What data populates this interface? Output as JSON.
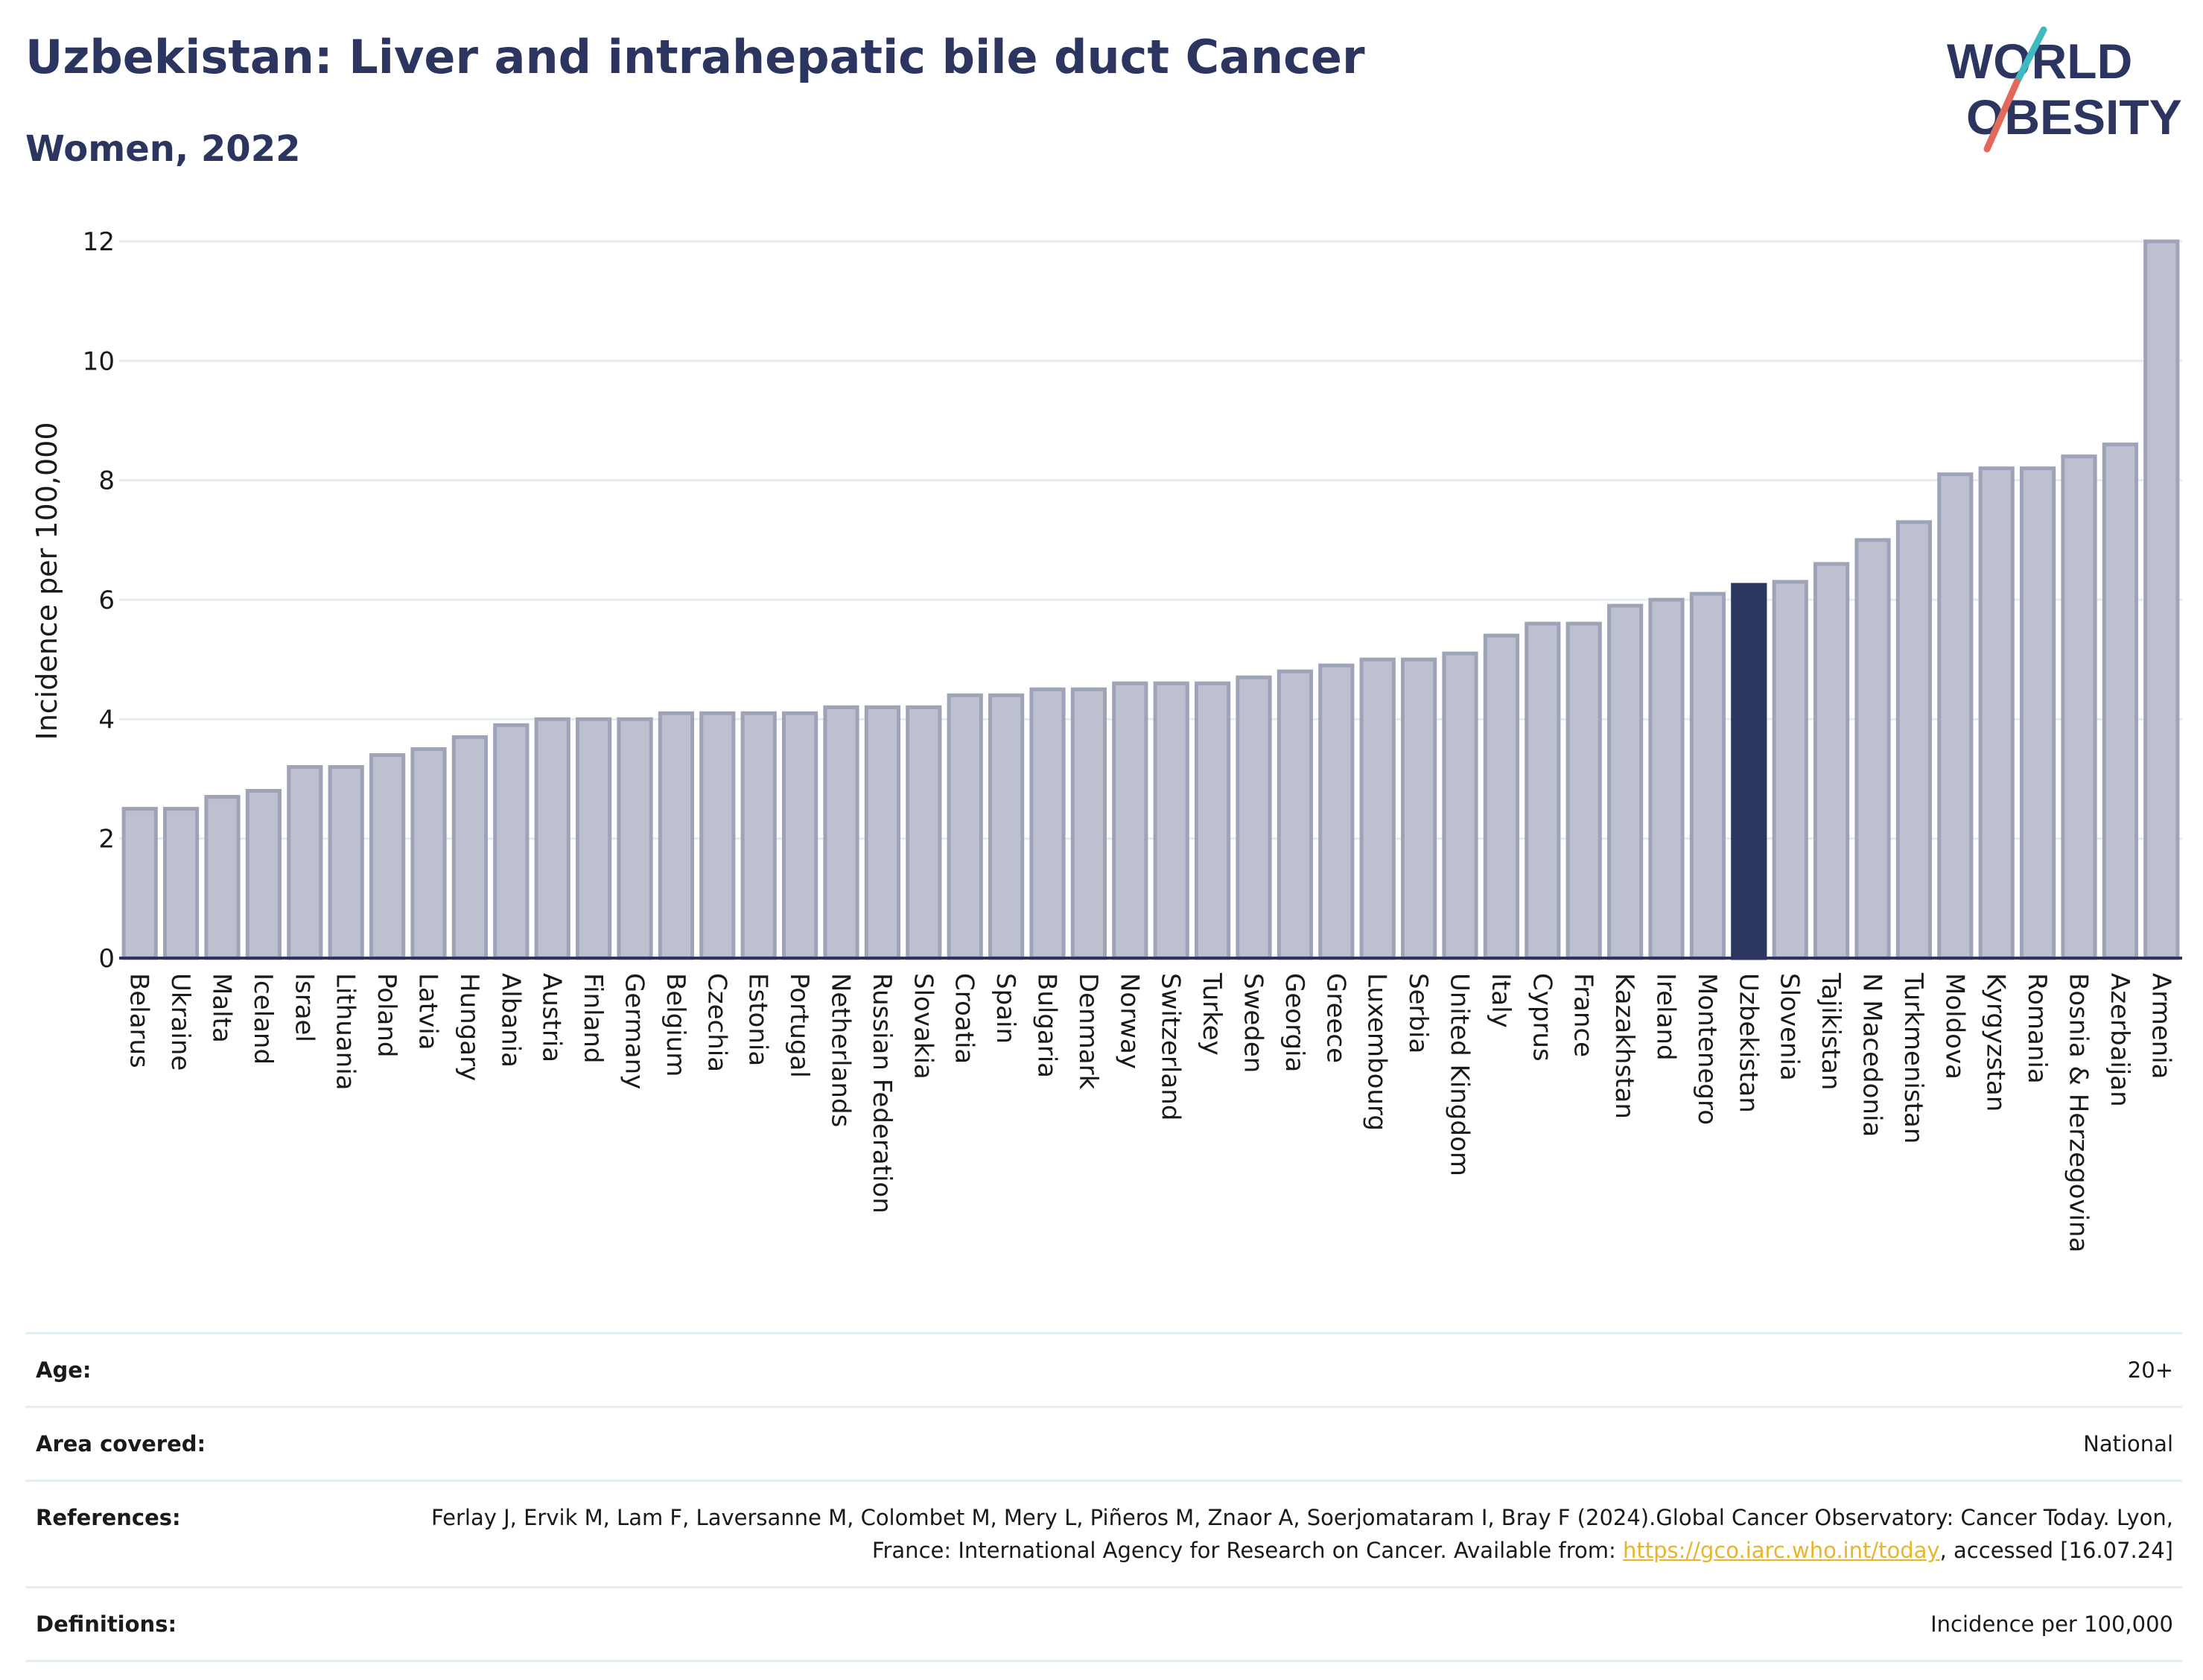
{
  "header": {
    "title": "Uzbekistan: Liver and intrahepatic bile duct Cancer",
    "subtitle": "Women, 2022"
  },
  "logo": {
    "line1": "WORLD",
    "line2": "OBESITY"
  },
  "colors": {
    "bar": "#bcc0cf",
    "bar_stroke": "#9ea3b8",
    "highlight": "#2b3560",
    "grid": "#e6ebf1",
    "title": "#2b3560",
    "link": "#e9b52c"
  },
  "chart_data": {
    "type": "bar",
    "ylabel": "Incidence per 100,000",
    "xlabel": "",
    "ylim": [
      0,
      12
    ],
    "yticks": [
      0,
      2,
      4,
      6,
      8,
      10,
      12
    ],
    "grid": true,
    "highlight": "Uzbekistan",
    "categories": [
      "Belarus",
      "Ukraine",
      "Malta",
      "Iceland",
      "Israel",
      "Lithuania",
      "Poland",
      "Latvia",
      "Hungary",
      "Albania",
      "Austria",
      "Finland",
      "Germany",
      "Belgium",
      "Czechia",
      "Estonia",
      "Portugal",
      "Netherlands",
      "Russian Federation",
      "Slovakia",
      "Croatia",
      "Spain",
      "Bulgaria",
      "Denmark",
      "Norway",
      "Switzerland",
      "Turkey",
      "Sweden",
      "Georgia",
      "Greece",
      "Luxembourg",
      "Serbia",
      "United Kingdom",
      "Italy",
      "Cyprus",
      "France",
      "Kazakhstan",
      "Ireland",
      "Montenegro",
      "Uzbekistan",
      "Slovenia",
      "Tajikistan",
      "N Macedonia",
      "Turkmenistan",
      "Moldova",
      "Kyrgyzstan",
      "Romania",
      "Bosnia & Herzegovina",
      "Azerbaijan",
      "Armenia"
    ],
    "values": [
      2.5,
      2.5,
      2.7,
      2.8,
      3.2,
      3.2,
      3.4,
      3.5,
      3.7,
      3.9,
      4.0,
      4.0,
      4.0,
      4.1,
      4.1,
      4.1,
      4.1,
      4.2,
      4.2,
      4.2,
      4.4,
      4.4,
      4.5,
      4.5,
      4.6,
      4.6,
      4.6,
      4.7,
      4.8,
      4.9,
      5.0,
      5.0,
      5.1,
      5.4,
      5.6,
      5.6,
      5.9,
      6.0,
      6.1,
      6.25,
      6.3,
      6.6,
      7.0,
      7.3,
      8.1,
      8.2,
      8.2,
      8.4,
      8.6,
      12.0
    ]
  },
  "info": {
    "age_label": "Age:",
    "age_value": "20+",
    "area_label": "Area covered:",
    "area_value": "National",
    "ref_label": "References:",
    "ref_text": "Ferlay J, Ervik M, Lam F, Laversanne M, Colombet M, Mery L, Piñeros M, Znaor A, Soerjomataram I, Bray F (2024).Global Cancer Observatory: Cancer Today. Lyon, France: International Agency for Research on Cancer. Available from: ",
    "ref_link": "https://gco.iarc.who.int/today",
    "ref_tail": ", accessed [16.07.24]",
    "def_label": "Definitions:",
    "def_value": "Incidence per 100,000"
  }
}
